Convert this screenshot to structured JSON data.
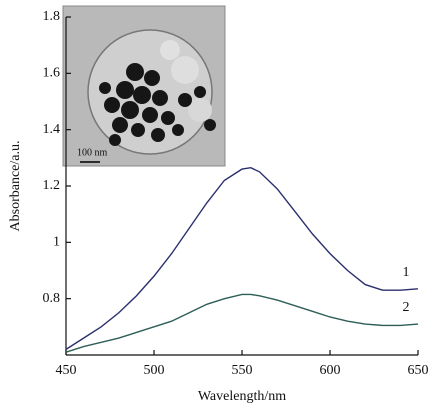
{
  "chart_data": {
    "type": "line",
    "x_label": "Wavelength/nm",
    "y_label": "Absorbance/a.u.",
    "inset_label": "100 nm",
    "x": [
      450,
      460,
      470,
      480,
      490,
      500,
      510,
      520,
      530,
      540,
      550,
      555,
      560,
      570,
      580,
      590,
      600,
      610,
      620,
      630,
      640,
      650
    ],
    "series": [
      {
        "name": "1",
        "color": "#2b2f6e",
        "values": [
          0.62,
          0.66,
          0.7,
          0.75,
          0.81,
          0.88,
          0.96,
          1.05,
          1.14,
          1.22,
          1.26,
          1.265,
          1.25,
          1.19,
          1.11,
          1.03,
          0.96,
          0.9,
          0.85,
          0.83,
          0.83,
          0.835
        ]
      },
      {
        "name": "2",
        "color": "#2e5e57",
        "values": [
          0.61,
          0.63,
          0.645,
          0.66,
          0.68,
          0.7,
          0.72,
          0.75,
          0.78,
          0.8,
          0.815,
          0.815,
          0.81,
          0.795,
          0.775,
          0.755,
          0.735,
          0.72,
          0.71,
          0.705,
          0.705,
          0.71
        ]
      }
    ],
    "xlim": [
      450,
      650
    ],
    "xticks": [
      450,
      500,
      550,
      600,
      650
    ],
    "ylim": [
      0.6,
      1.8
    ],
    "yticks": [
      0.8,
      1.0,
      1.2,
      1.4,
      1.6,
      1.8
    ],
    "grid": false
  }
}
